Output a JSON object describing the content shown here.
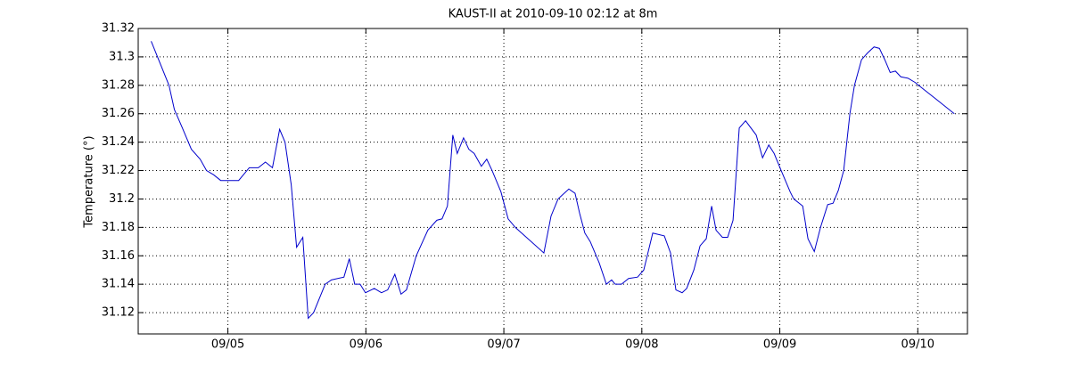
{
  "chart_data": {
    "type": "line",
    "title": "KAUST-II at 2010-09-10 02:12 at 8m",
    "y_label": "Temperature (°)",
    "x": [
      4.444,
      4.573,
      4.612,
      4.67,
      4.735,
      4.799,
      4.845,
      4.897,
      4.948,
      5.078,
      5.155,
      5.22,
      5.272,
      5.323,
      5.375,
      5.414,
      5.459,
      5.498,
      5.543,
      5.582,
      5.621,
      5.705,
      5.75,
      5.841,
      5.88,
      5.919,
      5.958,
      5.997,
      6.061,
      6.113,
      6.158,
      6.21,
      6.255,
      6.294,
      6.365,
      6.449,
      6.514,
      6.552,
      6.591,
      6.63,
      6.662,
      6.708,
      6.746,
      6.785,
      6.837,
      6.876,
      6.915,
      6.979,
      7.031,
      7.083,
      7.29,
      7.342,
      7.393,
      7.471,
      7.516,
      7.549,
      7.587,
      7.626,
      7.691,
      7.743,
      7.781,
      7.807,
      7.853,
      7.904,
      7.969,
      8.014,
      8.079,
      8.163,
      8.208,
      8.247,
      8.292,
      8.325,
      8.377,
      8.422,
      8.467,
      8.506,
      8.538,
      8.584,
      8.622,
      8.661,
      8.706,
      8.752,
      8.829,
      8.875,
      8.92,
      8.959,
      9.01,
      9.075,
      9.101,
      9.166,
      9.204,
      9.25,
      9.295,
      9.347,
      9.386,
      9.424,
      9.463,
      9.508,
      9.541,
      9.592,
      9.638,
      9.683,
      9.722,
      9.761,
      9.8,
      9.838,
      9.877,
      9.929,
      9.981,
      10.045,
      10.136,
      10.265
    ],
    "series": [
      {
        "name": "Temperature",
        "color": "#0000cc",
        "values": [
          31.311,
          31.28,
          31.263,
          31.25,
          31.235,
          31.228,
          31.22,
          31.217,
          31.213,
          31.213,
          31.222,
          31.222,
          31.226,
          31.222,
          31.249,
          31.24,
          31.21,
          31.166,
          31.173,
          31.116,
          31.12,
          31.14,
          31.143,
          31.145,
          31.158,
          31.14,
          31.14,
          31.134,
          31.137,
          31.134,
          31.136,
          31.147,
          31.133,
          31.136,
          31.16,
          31.178,
          31.185,
          31.186,
          31.195,
          31.245,
          31.232,
          31.243,
          31.235,
          31.232,
          31.223,
          31.228,
          31.22,
          31.205,
          31.186,
          31.18,
          31.162,
          31.188,
          31.2,
          31.207,
          31.204,
          31.19,
          31.176,
          31.17,
          31.155,
          31.14,
          31.143,
          31.14,
          31.14,
          31.144,
          31.145,
          31.15,
          31.176,
          31.174,
          31.162,
          31.136,
          31.134,
          31.137,
          31.15,
          31.167,
          31.172,
          31.195,
          31.178,
          31.173,
          31.173,
          31.185,
          31.25,
          31.255,
          31.245,
          31.229,
          31.238,
          31.232,
          31.22,
          31.205,
          31.2,
          31.195,
          31.172,
          31.163,
          31.18,
          31.196,
          31.197,
          31.206,
          31.22,
          31.26,
          31.28,
          31.298,
          31.303,
          31.307,
          31.306,
          31.298,
          31.289,
          31.29,
          31.286,
          31.285,
          31.282,
          31.277,
          31.27,
          31.26
        ]
      }
    ],
    "xlim": [
      4.35,
      10.36
    ],
    "xticks": [
      {
        "value": 5,
        "label": "09/05"
      },
      {
        "value": 6,
        "label": "09/06"
      },
      {
        "value": 7,
        "label": "09/07"
      },
      {
        "value": 8,
        "label": "09/08"
      },
      {
        "value": 9,
        "label": "09/09"
      },
      {
        "value": 10,
        "label": "09/10"
      }
    ],
    "ylim": [
      31.105,
      31.32
    ],
    "yticks": [
      31.12,
      31.14,
      31.16,
      31.18,
      31.2,
      31.22,
      31.24,
      31.26,
      31.28,
      31.3,
      31.32
    ],
    "grid": true
  }
}
